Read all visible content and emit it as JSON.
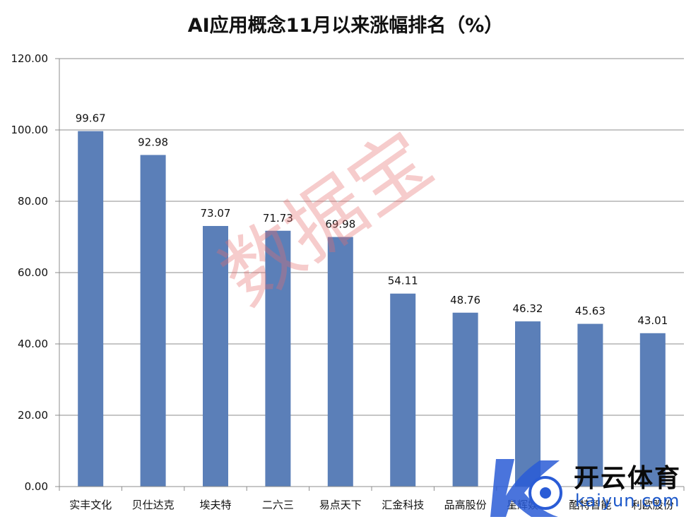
{
  "chart_data": {
    "type": "bar",
    "title": "AI应用概念11月以来涨幅排名（%）",
    "categories": [
      "实丰文化",
      "贝仕达克",
      "埃夫特",
      "二六三",
      "易点天下",
      "汇金科技",
      "品高股份",
      "星辉娱乐",
      "酷特智能",
      "利欧股份"
    ],
    "values": [
      99.67,
      92.98,
      73.07,
      71.73,
      69.98,
      54.11,
      48.76,
      46.32,
      45.63,
      43.01
    ],
    "value_labels": [
      "99.67",
      "92.98",
      "73.07",
      "71.73",
      "69.98",
      "54.11",
      "48.76",
      "46.32",
      "45.63",
      "43.01"
    ],
    "y_ticks": [
      "0.00",
      "20.00",
      "40.00",
      "60.00",
      "80.00",
      "100.00",
      "120.00"
    ],
    "ylim": [
      0,
      120
    ],
    "grid": true,
    "legend": "none",
    "bar_color": "#5b7fb8"
  },
  "watermark": "数据宝",
  "logo": {
    "name": "开云体育",
    "sub": "kaiyun.com"
  }
}
